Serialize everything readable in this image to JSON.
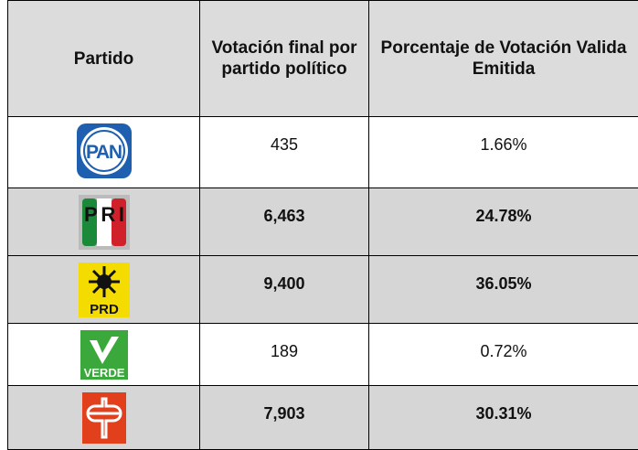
{
  "table": {
    "header": [
      "Partido",
      "Votación final por partido político",
      "Porcentaje de Votación Valida Emitida"
    ],
    "rows": [
      {
        "logo": "PAN",
        "votes": "435",
        "percent": "1.66%"
      },
      {
        "logo": "PRI",
        "votes": "6,463",
        "percent": "24.78%"
      },
      {
        "logo": "PRD",
        "votes": "9,400",
        "percent": "36.05%"
      },
      {
        "logo": "VERDE",
        "votes": "189",
        "percent": "0.72%"
      },
      {
        "votes": "7,903",
        "percent": "30.31%"
      }
    ]
  }
}
